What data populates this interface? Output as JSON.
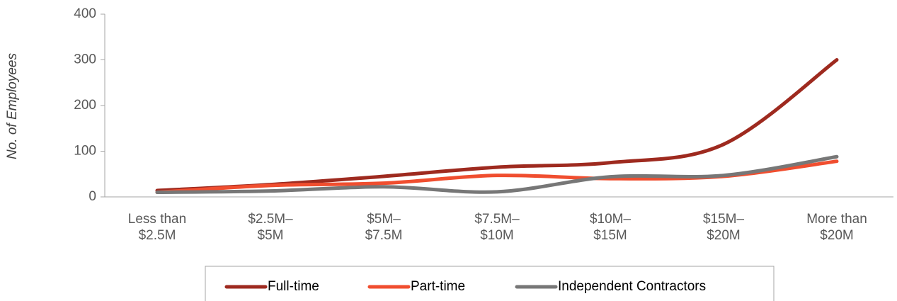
{
  "chart_data": {
    "type": "line",
    "y_label": "No. of Employees",
    "categories": [
      "Less than\n$2.5M",
      "$2.5M–\n$5M",
      "$5M–\n$7.5M",
      "$7.5M–\n$10M",
      "$10M–\n$15M",
      "$15M–\n$20M",
      "More than\n$20M"
    ],
    "series": [
      {
        "name": "Full-time",
        "color": "#9e2a1f",
        "values": [
          14,
          27,
          45,
          65,
          75,
          115,
          300
        ]
      },
      {
        "name": "Part-time",
        "color": "#f04e2f",
        "values": [
          10,
          25,
          30,
          47,
          40,
          45,
          78
        ]
      },
      {
        "name": "Independent Contractors",
        "color": "#777777",
        "values": [
          10,
          13,
          22,
          11,
          44,
          47,
          88
        ]
      }
    ],
    "ylim": [
      0,
      400
    ],
    "yticks": [
      0,
      100,
      200,
      300,
      400
    ],
    "smooth": true,
    "legend": "bottom"
  }
}
